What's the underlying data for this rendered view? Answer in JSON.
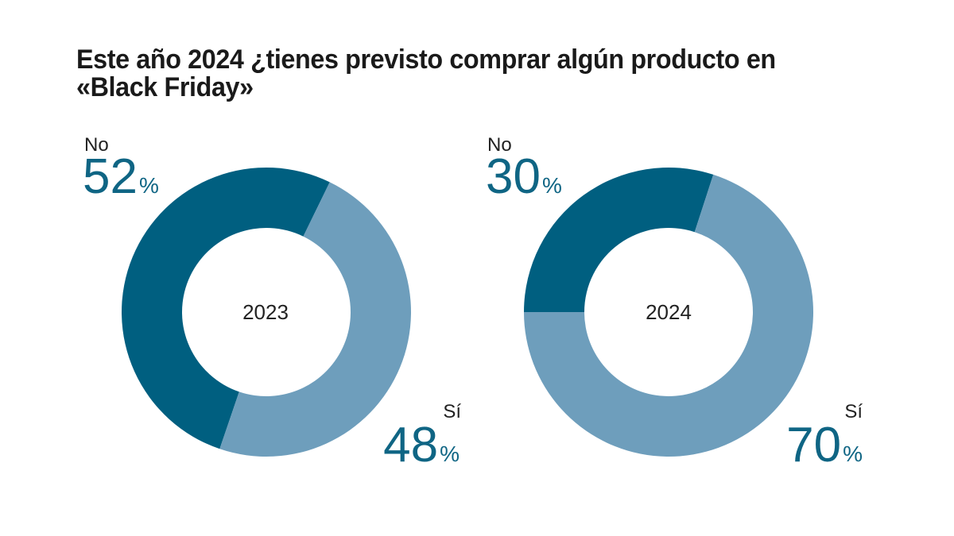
{
  "title": "Este año 2024 ¿tienes previsto comprar algún producto en «Black Friday»",
  "colors": {
    "no": "#005F80",
    "si": "#6E9EBC",
    "value_text": "#0F6584"
  },
  "chart_data": [
    {
      "type": "pie",
      "variant": "donut",
      "title": "Este año 2024 ¿tienes previsto comprar algún producto en «Black Friday»",
      "center_label": "2023",
      "categories": [
        "No",
        "Sí"
      ],
      "values": [
        52,
        48
      ],
      "unit": "%",
      "labels": [
        {
          "name": "No",
          "value": "52",
          "unit": "%"
        },
        {
          "name": "Sí",
          "value": "48",
          "unit": "%"
        }
      ]
    },
    {
      "type": "pie",
      "variant": "donut",
      "title": "Este año 2024 ¿tienes previsto comprar algún producto en «Black Friday»",
      "center_label": "2024",
      "categories": [
        "No",
        "Sí"
      ],
      "values": [
        30,
        70
      ],
      "unit": "%",
      "labels": [
        {
          "name": "No",
          "value": "30",
          "unit": "%"
        },
        {
          "name": "Sí",
          "value": "70",
          "unit": "%"
        }
      ]
    }
  ]
}
